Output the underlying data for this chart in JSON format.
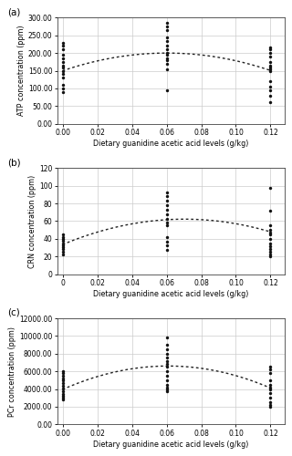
{
  "panels": [
    {
      "label": "(a)",
      "ylabel": "ATP concentration (ppm)",
      "xlabel": "Dietary guanidine acetic acid levels (g/kg)",
      "ylim": [
        0,
        300
      ],
      "yticks": [
        0,
        50,
        100,
        150,
        200,
        250,
        300
      ],
      "ytick_labels": [
        "0.00",
        "50.00",
        "100.00",
        "150.00",
        "200.00",
        "250.00",
        "300.00"
      ],
      "xlim": [
        -0.003,
        0.128
      ],
      "xticks": [
        0.0,
        0.02,
        0.04,
        0.06,
        0.08,
        0.1,
        0.12
      ],
      "xtick_labels": [
        "0.00",
        "0.02",
        "0.04",
        "0.06",
        "0.08",
        "0.10",
        "0.12"
      ],
      "coef": [
        150.03,
        1664.2,
        -13818.0
      ],
      "scatter_x": [
        0.0,
        0.0,
        0.0,
        0.0,
        0.0,
        0.0,
        0.0,
        0.0,
        0.0,
        0.0,
        0.0,
        0.0,
        0.0,
        0.0,
        0.06,
        0.06,
        0.06,
        0.06,
        0.06,
        0.06,
        0.06,
        0.06,
        0.06,
        0.06,
        0.06,
        0.06,
        0.06,
        0.06,
        0.12,
        0.12,
        0.12,
        0.12,
        0.12,
        0.12,
        0.12,
        0.12,
        0.12,
        0.12,
        0.12,
        0.12,
        0.12,
        0.12
      ],
      "scatter_y": [
        230,
        220,
        210,
        195,
        185,
        175,
        165,
        160,
        150,
        140,
        130,
        110,
        100,
        90,
        285,
        275,
        265,
        245,
        235,
        220,
        210,
        200,
        195,
        185,
        180,
        170,
        155,
        95,
        215,
        210,
        200,
        190,
        175,
        165,
        160,
        155,
        150,
        120,
        105,
        95,
        80,
        60
      ]
    },
    {
      "label": "(b)",
      "ylabel": "CRN concentration (ppm)",
      "xlabel": "Dietary guanidine acetic acid levels (g/kg)",
      "ylim": [
        0,
        120
      ],
      "yticks": [
        0,
        20,
        40,
        60,
        80,
        100,
        120
      ],
      "ytick_labels": [
        "0",
        "20",
        "40",
        "60",
        "80",
        "100",
        "120"
      ],
      "xlim": [
        -0.003,
        0.128
      ],
      "xticks": [
        0,
        0.02,
        0.04,
        0.06,
        0.08,
        0.1,
        0.12
      ],
      "xtick_labels": [
        "0",
        "0.02",
        "0.04",
        "0.06",
        "0.08",
        "0.10",
        "0.12"
      ],
      "coef": [
        33.44,
        817.76,
        -5818.4
      ],
      "scatter_x": [
        0.0,
        0.0,
        0.0,
        0.0,
        0.0,
        0.0,
        0.0,
        0.0,
        0.0,
        0.0,
        0.06,
        0.06,
        0.06,
        0.06,
        0.06,
        0.06,
        0.06,
        0.06,
        0.06,
        0.06,
        0.06,
        0.06,
        0.06,
        0.12,
        0.12,
        0.12,
        0.12,
        0.12,
        0.12,
        0.12,
        0.12,
        0.12,
        0.12,
        0.12,
        0.12,
        0.12
      ],
      "scatter_y": [
        45,
        42,
        40,
        38,
        35,
        33,
        30,
        28,
        25,
        22,
        92,
        88,
        83,
        78,
        73,
        68,
        62,
        58,
        55,
        42,
        37,
        33,
        27,
        98,
        72,
        55,
        50,
        47,
        45,
        40,
        35,
        32,
        28,
        25,
        22,
        20
      ]
    },
    {
      "label": "(c)",
      "ylabel": "PCr concentration (ppm)",
      "xlabel": "Dietary guanidine acetic acid levels (g/kg)",
      "ylim": [
        0,
        12000
      ],
      "yticks": [
        0,
        2000,
        4000,
        6000,
        8000,
        10000,
        12000
      ],
      "ytick_labels": [
        "0.00",
        "2000.00",
        "4000.00",
        "6000.00",
        "8000.00",
        "10000.00",
        "12000.00"
      ],
      "xlim": [
        -0.003,
        0.128
      ],
      "xticks": [
        0.0,
        0.02,
        0.04,
        0.06,
        0.08,
        0.1,
        0.12
      ],
      "xtick_labels": [
        "0.00",
        "0.02",
        "0.04",
        "0.06",
        "0.08",
        "0.10",
        "0.12"
      ],
      "coef": [
        3954.0,
        87133.0,
        -715010.0
      ],
      "scatter_x": [
        0.0,
        0.0,
        0.0,
        0.0,
        0.0,
        0.0,
        0.0,
        0.0,
        0.0,
        0.0,
        0.0,
        0.0,
        0.0,
        0.06,
        0.06,
        0.06,
        0.06,
        0.06,
        0.06,
        0.06,
        0.06,
        0.06,
        0.06,
        0.06,
        0.06,
        0.06,
        0.06,
        0.06,
        0.12,
        0.12,
        0.12,
        0.12,
        0.12,
        0.12,
        0.12,
        0.12,
        0.12,
        0.12,
        0.12,
        0.12
      ],
      "scatter_y": [
        6000,
        5800,
        5500,
        5200,
        5000,
        4700,
        4400,
        4100,
        3800,
        3400,
        3200,
        3000,
        2800,
        9800,
        9000,
        8500,
        8000,
        7600,
        7200,
        6800,
        6500,
        6000,
        5500,
        5000,
        4500,
        4200,
        4000,
        3800,
        6500,
        6200,
        5800,
        5000,
        4500,
        4200,
        4000,
        3500,
        3000,
        2500,
        2200,
        2000
      ]
    }
  ],
  "dot_color": "#111111",
  "dot_size": 6,
  "curve_color": "#222222",
  "curve_lw": 1.0,
  "axis_font_size": 5.8,
  "label_font_size": 7.5,
  "tick_font_size": 5.5,
  "bg_color": "#ffffff",
  "grid_color": "#cccccc",
  "grid_lw": 0.5
}
